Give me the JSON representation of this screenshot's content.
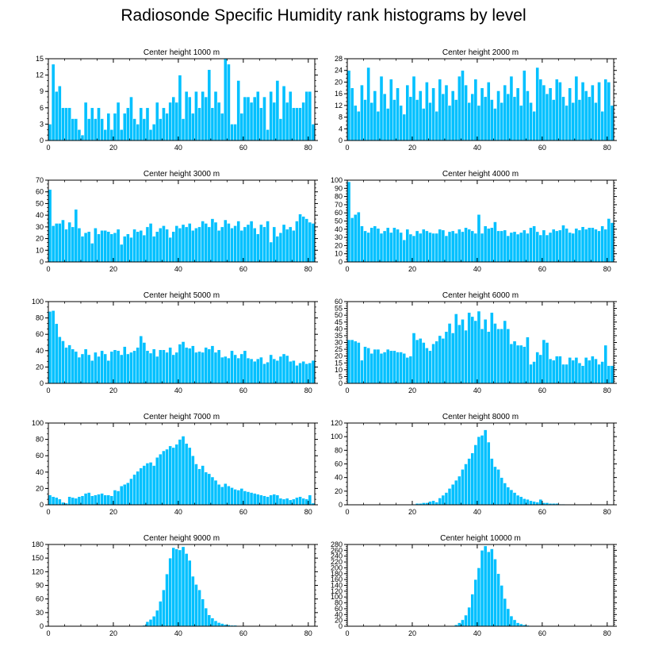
{
  "figure_title": "Radiosonde Specific Humidity rank histograms by level",
  "colors": {
    "bar": "#00c0ff",
    "bar_edge": "#ffffff",
    "axis": "#000000"
  },
  "chart_data": [
    {
      "type": "bar",
      "title": "Center height 1000 m",
      "xlim": [
        0,
        82
      ],
      "ylim": [
        0,
        15
      ],
      "xticks": [
        0,
        20,
        40,
        60,
        80
      ],
      "yticks": [
        0,
        3,
        6,
        9,
        12,
        15
      ],
      "values": [
        3,
        14,
        9,
        10,
        6,
        6,
        6,
        4,
        4,
        2,
        1,
        7,
        4,
        6,
        4,
        6,
        4,
        2,
        5,
        2,
        5,
        7,
        2,
        5,
        6,
        8,
        4,
        3,
        6,
        4,
        6,
        2,
        3,
        7,
        4,
        6,
        5,
        7,
        8,
        7,
        12,
        4,
        9,
        8,
        5,
        9,
        6,
        9,
        8,
        13,
        6,
        9,
        7,
        5,
        15,
        14,
        3,
        3,
        11,
        5,
        8,
        8,
        7,
        8,
        9,
        6,
        8,
        2,
        9,
        7,
        11,
        4,
        10,
        7,
        9,
        6,
        6,
        6,
        7,
        9,
        9,
        3
      ]
    },
    {
      "type": "bar",
      "title": "Center height 2000 m",
      "xlim": [
        0,
        82
      ],
      "ylim": [
        0,
        28
      ],
      "xticks": [
        0,
        20,
        40,
        60,
        80
      ],
      "yticks": [
        0,
        4,
        8,
        12,
        16,
        20,
        24,
        28
      ],
      "values": [
        24,
        18,
        12,
        10,
        19,
        14,
        25,
        13,
        17,
        10,
        22,
        16,
        11,
        21,
        14,
        18,
        12,
        9,
        19,
        15,
        22,
        14,
        17,
        11,
        20,
        13,
        18,
        10,
        21,
        16,
        19,
        12,
        17,
        14,
        22,
        24,
        19,
        13,
        16,
        21,
        12,
        18,
        15,
        20,
        14,
        11,
        17,
        13,
        19,
        16,
        22,
        15,
        18,
        12,
        24,
        17,
        13,
        10,
        25,
        21,
        19,
        16,
        18,
        14,
        21,
        20,
        15,
        12,
        18,
        13,
        22,
        14,
        20,
        17,
        15,
        19,
        13,
        20,
        10,
        21,
        20,
        12
      ]
    },
    {
      "type": "bar",
      "title": "Center height 3000 m",
      "xlim": [
        0,
        82
      ],
      "ylim": [
        0,
        70
      ],
      "xticks": [
        0,
        20,
        40,
        60,
        80
      ],
      "yticks": [
        0,
        10,
        20,
        30,
        40,
        50,
        60,
        70
      ],
      "values": [
        62,
        31,
        33,
        33,
        36,
        28,
        34,
        30,
        45,
        29,
        22,
        25,
        26,
        16,
        29,
        24,
        27,
        27,
        26,
        24,
        25,
        28,
        15,
        22,
        24,
        21,
        28,
        26,
        27,
        23,
        30,
        33,
        22,
        26,
        29,
        31,
        28,
        21,
        26,
        31,
        29,
        32,
        30,
        33,
        27,
        29,
        30,
        35,
        33,
        30,
        37,
        34,
        27,
        30,
        36,
        33,
        29,
        31,
        35,
        27,
        30,
        32,
        35,
        29,
        24,
        32,
        30,
        35,
        17,
        30,
        22,
        25,
        32,
        28,
        30,
        27,
        35,
        41,
        39,
        37,
        34,
        33
      ]
    },
    {
      "type": "bar",
      "title": "Center height 4000 m",
      "xlim": [
        0,
        82
      ],
      "ylim": [
        0,
        100
      ],
      "xticks": [
        0,
        20,
        40,
        60,
        80
      ],
      "yticks": [
        0,
        10,
        20,
        30,
        40,
        50,
        60,
        70,
        80,
        90,
        100
      ],
      "values": [
        98,
        54,
        58,
        61,
        44,
        38,
        36,
        42,
        44,
        41,
        35,
        38,
        42,
        36,
        42,
        40,
        36,
        27,
        40,
        34,
        32,
        38,
        35,
        40,
        38,
        36,
        35,
        35,
        40,
        39,
        32,
        37,
        38,
        35,
        40,
        37,
        42,
        40,
        38,
        35,
        58,
        35,
        44,
        41,
        42,
        49,
        38,
        38,
        39,
        32,
        36,
        37,
        34,
        36,
        39,
        35,
        42,
        44,
        37,
        33,
        39,
        33,
        36,
        40,
        38,
        39,
        45,
        41,
        36,
        35,
        41,
        39,
        43,
        40,
        42,
        42,
        40,
        38,
        44,
        40,
        53,
        48
      ]
    },
    {
      "type": "bar",
      "title": "Center height 5000 m",
      "xlim": [
        0,
        82
      ],
      "ylim": [
        0,
        100
      ],
      "xticks": [
        0,
        20,
        40,
        60,
        80
      ],
      "yticks": [
        0,
        20,
        40,
        60,
        80,
        100
      ],
      "values": [
        88,
        89,
        73,
        57,
        52,
        44,
        47,
        42,
        39,
        32,
        36,
        42,
        35,
        28,
        38,
        33,
        40,
        36,
        28,
        39,
        41,
        40,
        35,
        45,
        36,
        38,
        40,
        44,
        58,
        50,
        40,
        37,
        42,
        33,
        41,
        41,
        38,
        44,
        35,
        38,
        48,
        51,
        44,
        43,
        46,
        38,
        39,
        38,
        44,
        42,
        46,
        38,
        41,
        32,
        33,
        31,
        40,
        35,
        31,
        36,
        40,
        31,
        30,
        27,
        30,
        32,
        24,
        26,
        35,
        30,
        28,
        33,
        36,
        34,
        27,
        28,
        22,
        25,
        27,
        24,
        25,
        28
      ]
    },
    {
      "type": "bar",
      "title": "Center height 6000 m",
      "xlim": [
        0,
        82
      ],
      "ylim": [
        0,
        60
      ],
      "xticks": [
        0,
        20,
        40,
        60,
        80
      ],
      "yticks": [
        0,
        5,
        10,
        15,
        20,
        25,
        30,
        35,
        40,
        45,
        50,
        55,
        60
      ],
      "values": [
        32,
        32,
        31,
        30,
        17,
        27,
        26,
        22,
        25,
        25,
        22,
        23,
        25,
        24,
        24,
        23,
        23,
        22,
        19,
        20,
        37,
        32,
        33,
        30,
        26,
        24,
        29,
        31,
        35,
        33,
        38,
        44,
        37,
        51,
        43,
        47,
        39,
        52,
        49,
        46,
        53,
        40,
        47,
        38,
        52,
        44,
        40,
        40,
        46,
        40,
        29,
        31,
        28,
        28,
        27,
        34,
        14,
        16,
        23,
        21,
        32,
        30,
        18,
        17,
        20,
        20,
        14,
        14,
        19,
        17,
        19,
        15,
        13,
        19,
        17,
        20,
        18,
        14,
        16,
        28,
        13,
        13
      ]
    },
    {
      "type": "bar",
      "title": "Center height 7000 m",
      "xlim": [
        0,
        82
      ],
      "ylim": [
        0,
        100
      ],
      "xticks": [
        0,
        20,
        40,
        60,
        80
      ],
      "yticks": [
        0,
        20,
        40,
        60,
        80,
        100
      ],
      "values": [
        12,
        10,
        9,
        7,
        3,
        2,
        10,
        9,
        8,
        10,
        11,
        14,
        15,
        11,
        12,
        13,
        14,
        12,
        12,
        11,
        18,
        17,
        23,
        25,
        27,
        32,
        37,
        41,
        45,
        48,
        51,
        52,
        48,
        58,
        62,
        66,
        68,
        72,
        70,
        74,
        80,
        84,
        75,
        70,
        60,
        50,
        44,
        48,
        40,
        38,
        34,
        30,
        25,
        22,
        26,
        23,
        21,
        19,
        18,
        20,
        17,
        16,
        15,
        14,
        13,
        12,
        11,
        10,
        12,
        13,
        12,
        8,
        7,
        8,
        6,
        7,
        9,
        10,
        8,
        7,
        12,
        2
      ]
    },
    {
      "type": "bar",
      "title": "Center height 8000 m",
      "xlim": [
        0,
        82
      ],
      "ylim": [
        0,
        120
      ],
      "xticks": [
        0,
        20,
        40,
        60,
        80
      ],
      "yticks": [
        0,
        20,
        40,
        60,
        80,
        100,
        120
      ],
      "values": [
        0,
        0,
        0,
        0,
        0,
        0,
        0,
        0,
        0,
        0,
        0,
        0,
        0,
        0,
        0,
        0,
        0,
        0,
        0,
        0,
        1,
        2,
        2,
        3,
        3,
        5,
        6,
        4,
        10,
        14,
        18,
        24,
        30,
        36,
        42,
        52,
        60,
        68,
        76,
        88,
        100,
        102,
        110,
        92,
        68,
        56,
        52,
        40,
        32,
        26,
        22,
        18,
        14,
        12,
        9,
        8,
        6,
        5,
        4,
        8,
        3,
        3,
        2,
        2,
        2,
        1,
        1,
        0,
        0,
        0,
        0,
        0,
        0,
        0,
        0,
        0,
        0,
        0,
        0,
        0,
        0,
        0
      ]
    },
    {
      "type": "bar",
      "title": "Center height 9000 m",
      "xlim": [
        0,
        82
      ],
      "ylim": [
        0,
        180
      ],
      "xticks": [
        0,
        20,
        40,
        60,
        80
      ],
      "yticks": [
        0,
        30,
        60,
        90,
        120,
        150,
        180
      ],
      "values": [
        0,
        0,
        0,
        0,
        0,
        0,
        0,
        0,
        0,
        0,
        0,
        0,
        0,
        0,
        0,
        0,
        0,
        0,
        0,
        0,
        0,
        0,
        0,
        0,
        0,
        0,
        0,
        0,
        1,
        2,
        10,
        15,
        22,
        35,
        55,
        80,
        115,
        150,
        173,
        170,
        168,
        175,
        160,
        145,
        110,
        92,
        80,
        60,
        40,
        25,
        18,
        12,
        8,
        6,
        4,
        3,
        2,
        2,
        0,
        0,
        0,
        0,
        0,
        0,
        0,
        0,
        0,
        0,
        0,
        0,
        0,
        0,
        0,
        0,
        0,
        0,
        0,
        0,
        0,
        0,
        0,
        0
      ]
    },
    {
      "type": "bar",
      "title": "Center height 10000 m",
      "xlim": [
        0,
        82
      ],
      "ylim": [
        0,
        280
      ],
      "xticks": [
        0,
        20,
        40,
        60,
        80
      ],
      "yticks": [
        0,
        20,
        40,
        60,
        80,
        100,
        120,
        140,
        160,
        180,
        200,
        220,
        240,
        260,
        280
      ],
      "values": [
        0,
        0,
        0,
        0,
        0,
        0,
        0,
        0,
        0,
        0,
        0,
        0,
        0,
        0,
        0,
        0,
        0,
        0,
        0,
        0,
        0,
        0,
        0,
        0,
        0,
        0,
        0,
        0,
        0,
        0,
        0,
        0,
        2,
        5,
        12,
        22,
        38,
        65,
        110,
        160,
        200,
        260,
        275,
        255,
        265,
        230,
        180,
        140,
        95,
        60,
        35,
        22,
        12,
        8,
        5,
        3,
        2,
        1,
        0,
        0,
        0,
        0,
        0,
        0,
        0,
        0,
        0,
        0,
        0,
        0,
        0,
        0,
        0,
        0,
        0,
        0,
        0,
        0,
        0,
        0,
        0,
        0
      ]
    }
  ]
}
